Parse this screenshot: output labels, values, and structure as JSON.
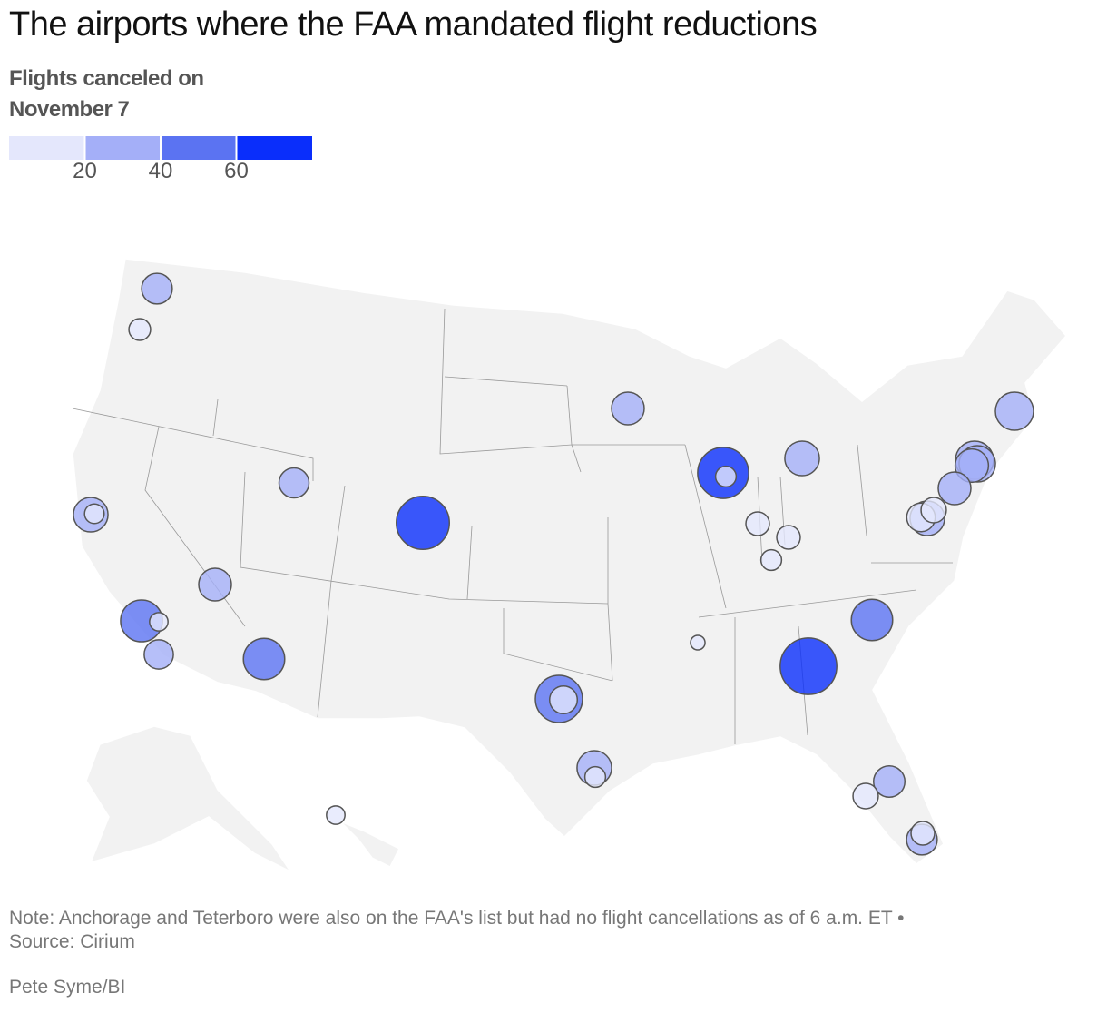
{
  "chart_data": {
    "type": "bubble-map",
    "title": "The airports where the FAA mandated flight reductions",
    "legend_title": "Flights canceled on November 7",
    "legend": {
      "lim": [
        0,
        80
      ],
      "ticks": [
        20,
        40,
        60
      ],
      "colors": [
        "#e4e7fc",
        "#a4aff8",
        "#5b73f2",
        "#0a2efb"
      ]
    },
    "values": [
      22,
      11,
      28,
      9,
      25,
      41,
      8,
      20,
      40,
      21,
      66,
      25,
      61,
      10,
      28,
      13,
      13,
      10,
      5,
      52,
      18,
      28,
      10,
      75,
      40,
      23,
      15,
      22,
      13,
      28,
      19,
      15,
      25,
      34,
      31,
      26,
      34,
      8
    ],
    "note": "Note: Anchorage and Teterboro were also on the FAA's list but had no flight cancellations as of 6 a.m. ET •",
    "source": "Source: Cirium",
    "credit": "Pete Syme/BI"
  }
}
